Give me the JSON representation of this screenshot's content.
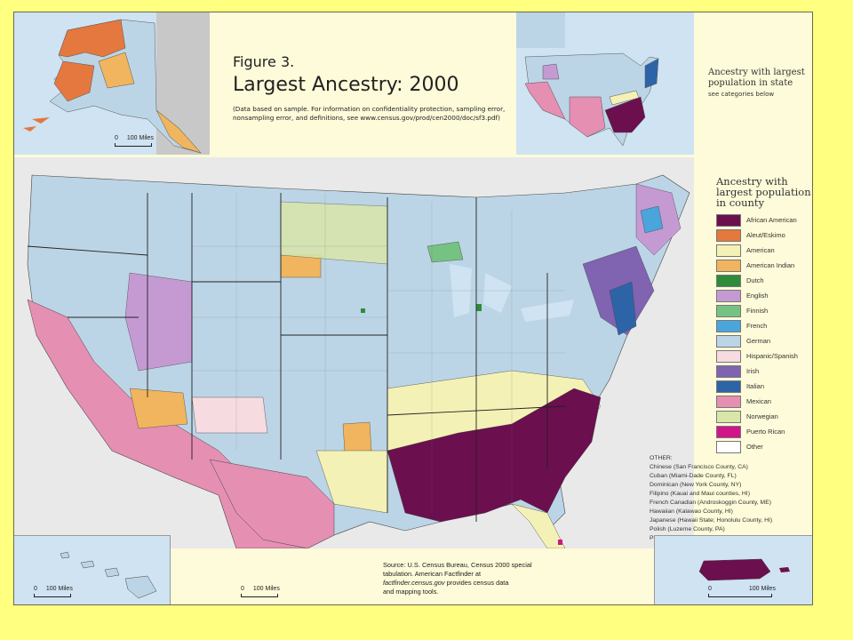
{
  "header": {
    "figure_number": "Figure 3.",
    "figure_title": "Largest Ancestry: 2000",
    "note": "(Data based on sample. For information on confidentiality protection, sampling error, nonsampling error, and definitions, see www.census.gov/prod/cen2000/doc/sf3.pdf)"
  },
  "state_inset": {
    "title": "Ancestry with largest population in state",
    "subtitle": "see categories below"
  },
  "alaska_scale": {
    "label": "100 Miles",
    "zero": "0"
  },
  "hawaii_scale": {
    "label": "100 Miles",
    "zero": "0"
  },
  "main_scale": {
    "label": "100 Miles",
    "zero": "0"
  },
  "pr_scale": {
    "label": "100 Miles",
    "zero": "0"
  },
  "county_legend": {
    "title": "Ancestry with largest population in county",
    "items": [
      {
        "label": "African American",
        "color": "#6b0f4f"
      },
      {
        "label": "Aleut/Eskimo",
        "color": "#e4783e"
      },
      {
        "label": "American",
        "color": "#f3f1b5"
      },
      {
        "label": "American Indian",
        "color": "#f0b55e"
      },
      {
        "label": "Dutch",
        "color": "#2e8b3a"
      },
      {
        "label": "English",
        "color": "#c59ad3"
      },
      {
        "label": "Finnish",
        "color": "#76c283"
      },
      {
        "label": "French",
        "color": "#4aa5dc"
      },
      {
        "label": "German",
        "color": "#bcd5e6"
      },
      {
        "label": "Hispanic/Spanish",
        "color": "#f6dbe0"
      },
      {
        "label": "Irish",
        "color": "#8063b1"
      },
      {
        "label": "Italian",
        "color": "#2d64a8"
      },
      {
        "label": "Mexican",
        "color": "#e58fb3"
      },
      {
        "label": "Norwegian",
        "color": "#d9e6a8"
      },
      {
        "label": "Puerto Rican",
        "color": "#d1148a"
      },
      {
        "label": "Other",
        "color": "#ffffff"
      }
    ]
  },
  "other_list": {
    "heading": "OTHER:",
    "items": [
      "Chinese (San Francisco County, CA)",
      "Cuban (Miami-Dade County, FL)",
      "Dominican (New York County, NY)",
      "Filipino (Kauai and Maui counties, HI)",
      "French Canadian (Androskoggin County, ME)",
      "Hawaiian (Kalawao County, HI)",
      "Japanese (Hawaii State; Honolulu County, HI)",
      "Polish (Luzerne County, PA)",
      "Portugese (Bristol County, MA and Bristol County, RI)"
    ]
  },
  "source": {
    "line1": "Source: U.S. Census Bureau, Census 2000 special",
    "line2": "tabulation. American Factfinder at",
    "line3_link": "factfinder.census.gov",
    "line3_rest": " provides census data",
    "line4": "and mapping tools."
  }
}
